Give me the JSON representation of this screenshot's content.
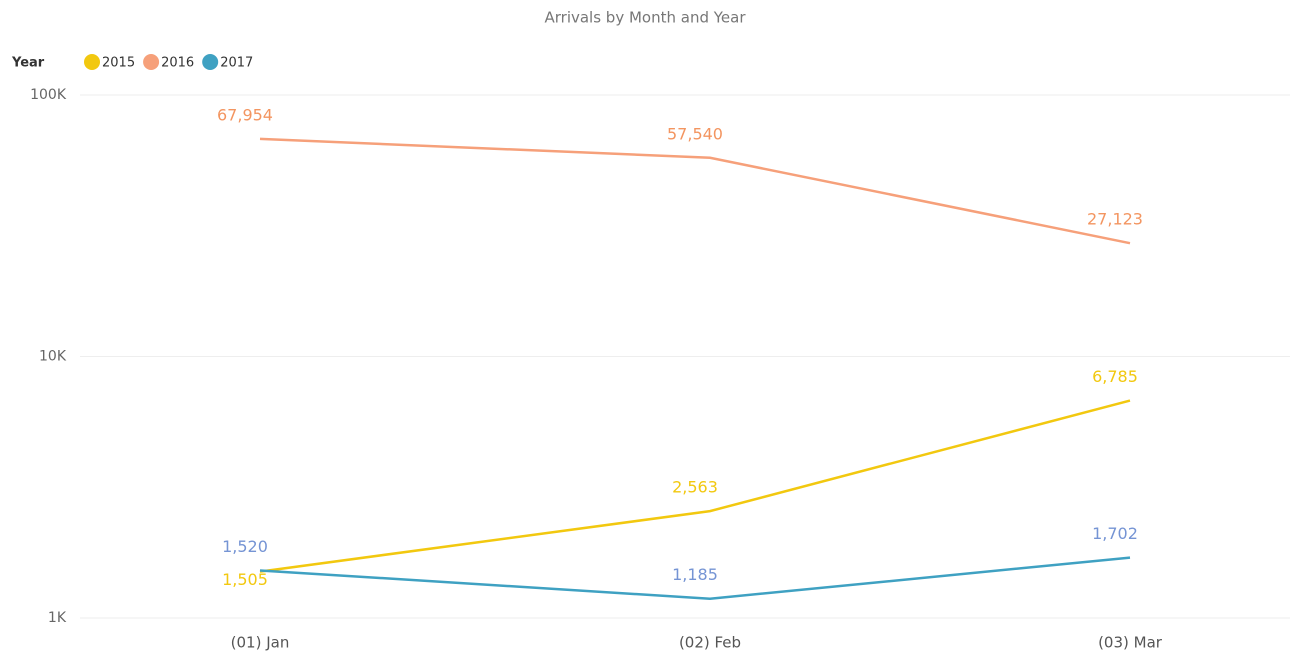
{
  "chart_data": {
    "type": "line",
    "title": "Arrivals by Month and Year",
    "legend_title": "Year",
    "legend": "top-left",
    "log_scale": true,
    "grid": true,
    "categories": [
      "(01) Jan",
      "(02) Feb",
      "(03) Mar"
    ],
    "series": [
      {
        "name": "2015",
        "color": "#f2c80f",
        "label_color": "#f2c80f",
        "values": [
          1505,
          2563,
          6785
        ],
        "value_labels": [
          "1,505",
          "2,563",
          "6,785"
        ]
      },
      {
        "name": "2016",
        "color": "#f6a07a",
        "label_color": "#f39560",
        "values": [
          67954,
          57540,
          27123
        ],
        "value_labels": [
          "67,954",
          "57,540",
          "27,123"
        ]
      },
      {
        "name": "2017",
        "color": "#3fa1c2",
        "label_color": "#7594d4",
        "values": [
          1520,
          1185,
          1702
        ],
        "value_labels": [
          "1,520",
          "1,185",
          "1,702"
        ]
      }
    ],
    "ylim": [
      1000,
      100000
    ],
    "yticks": [
      {
        "value": 1000,
        "label": "1K"
      },
      {
        "value": 10000,
        "label": "10K"
      },
      {
        "value": 100000,
        "label": "100K"
      }
    ]
  }
}
